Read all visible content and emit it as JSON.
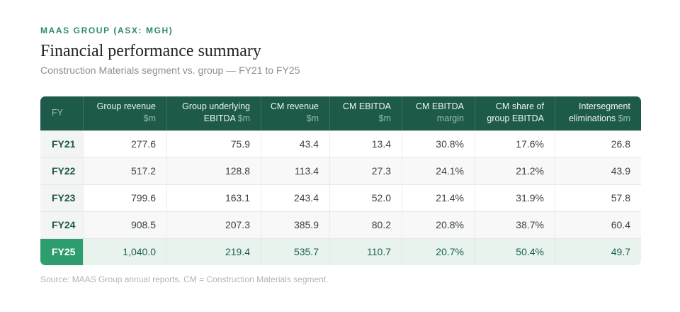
{
  "eyebrow": "MAAS GROUP (ASX: MGH)",
  "colors": {
    "header_teal": "#1d5a4a",
    "accent_green": "#2f9e6e",
    "highlight_row_bg": "#e7f3ec",
    "eyebrow_teal": "#2e8b6d"
  },
  "chart_data": {
    "type": "table",
    "title": "Financial performance summary",
    "subtitle": "Construction Materials segment vs. group — FY21 to FY25",
    "columns": [
      {
        "label": "FY",
        "l1": "",
        "l1d": "FY",
        "l2": "",
        "l2d": ""
      },
      {
        "label": "Group revenue $m",
        "l1": "Group revenue",
        "l1d": "",
        "l2": "",
        "l2d": "$m"
      },
      {
        "label": "Group underlying EBITDA $m",
        "l1": "Group underlying",
        "l1d": "",
        "l2": "EBITDA ",
        "l2d": "$m"
      },
      {
        "label": "CM revenue $m",
        "l1": "CM revenue",
        "l1d": "",
        "l2": "",
        "l2d": "$m"
      },
      {
        "label": "CM EBITDA $m",
        "l1": "CM EBITDA",
        "l1d": "",
        "l2": "",
        "l2d": "$m"
      },
      {
        "label": "CM EBITDA margin",
        "l1": "CM EBITDA",
        "l1d": "",
        "l2": "",
        "l2d": "margin"
      },
      {
        "label": "CM share of group EBITDA",
        "l1": "CM share of",
        "l1d": "",
        "l2": "group EBITDA",
        "l2d": ""
      },
      {
        "label": "Intersegment eliminations $m",
        "l1": "Intersegment",
        "l1d": "",
        "l2": "eliminations ",
        "l2d": "$m"
      }
    ],
    "rows": [
      {
        "year": "FY21",
        "highlight": false,
        "values": [
          "277.6",
          "75.9",
          "43.4",
          "13.4",
          "30.8%",
          "17.6%",
          "26.8"
        ]
      },
      {
        "year": "FY22",
        "highlight": false,
        "values": [
          "517.2",
          "128.8",
          "113.4",
          "27.3",
          "24.1%",
          "21.2%",
          "43.9"
        ]
      },
      {
        "year": "FY23",
        "highlight": false,
        "values": [
          "799.6",
          "163.1",
          "243.4",
          "52.0",
          "21.4%",
          "31.9%",
          "57.8"
        ]
      },
      {
        "year": "FY24",
        "highlight": false,
        "values": [
          "908.5",
          "207.3",
          "385.9",
          "80.2",
          "20.8%",
          "38.7%",
          "60.4"
        ]
      },
      {
        "year": "FY25",
        "highlight": true,
        "values": [
          "1,040.0",
          "219.4",
          "535.7",
          "110.7",
          "20.7%",
          "50.4%",
          "49.7"
        ]
      }
    ],
    "source": "Source: MAAS Group annual reports. CM = Construction Materials segment."
  }
}
